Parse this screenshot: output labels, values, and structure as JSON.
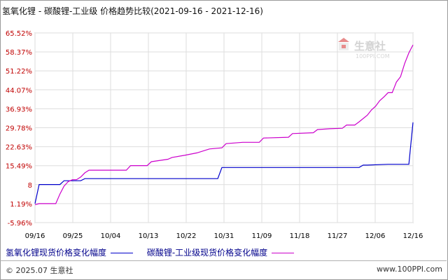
{
  "title": "氢氧化锂 - 碳酸锂-工业级 价格趋势比较(2021-09-16 - 2021-12-16)",
  "watermark": {
    "brand": "生意社",
    "url": "100PPI.COM"
  },
  "chart_data": {
    "type": "line",
    "yticks": [
      "65.52%",
      "58.37%",
      "51.22%",
      "44.07%",
      "36.93%",
      "29.78%",
      "22.63%",
      "15.49%",
      "8",
      "1.19%",
      "-5.96%"
    ],
    "ylim": [
      -5.96,
      65.52
    ],
    "xticks": [
      "09/16",
      "09/25",
      "10/04",
      "10/13",
      "10/22",
      "10/31",
      "11/09",
      "11/18",
      "11/27",
      "12/06",
      "12/16"
    ],
    "x_range": [
      "2021-09-16",
      "2021-12-16"
    ],
    "grid": true,
    "legend_position": "bottom",
    "series": [
      {
        "name": "氢氧化锂现货价格变化幅度",
        "color": "#0000cc",
        "points": [
          [
            "2021-09-16",
            1.2
          ],
          [
            "2021-09-17",
            8.4
          ],
          [
            "2021-09-18",
            8.4
          ],
          [
            "2021-09-19",
            8.4
          ],
          [
            "2021-09-20",
            8.4
          ],
          [
            "2021-09-21",
            8.4
          ],
          [
            "2021-09-22",
            8.4
          ],
          [
            "2021-09-23",
            9.8
          ],
          [
            "2021-09-24",
            9.8
          ],
          [
            "2021-09-25",
            9.8
          ],
          [
            "2021-09-26",
            9.8
          ],
          [
            "2021-09-27",
            9.8
          ],
          [
            "2021-09-28",
            10.6
          ],
          [
            "2021-09-29",
            10.6
          ],
          [
            "2021-10-08",
            10.6
          ],
          [
            "2021-10-15",
            10.6
          ],
          [
            "2021-10-22",
            10.6
          ],
          [
            "2021-10-29",
            10.6
          ],
          [
            "2021-10-30",
            10.6
          ],
          [
            "2021-10-31",
            14.8
          ],
          [
            "2021-11-05",
            14.8
          ],
          [
            "2021-11-15",
            14.8
          ],
          [
            "2021-11-25",
            14.8
          ],
          [
            "2021-12-03",
            14.8
          ],
          [
            "2021-12-04",
            15.7
          ],
          [
            "2021-12-05",
            15.7
          ],
          [
            "2021-12-10",
            16.0
          ],
          [
            "2021-12-14",
            16.0
          ],
          [
            "2021-12-15",
            16.0
          ],
          [
            "2021-12-16",
            31.8
          ]
        ]
      },
      {
        "name": "碳酸锂-工业级现货价格变化幅度",
        "color": "#cc00cc",
        "points": [
          [
            "2021-09-16",
            0.8
          ],
          [
            "2021-09-17",
            1.2
          ],
          [
            "2021-09-18",
            1.2
          ],
          [
            "2021-09-19",
            1.2
          ],
          [
            "2021-09-20",
            1.2
          ],
          [
            "2021-09-21",
            1.2
          ],
          [
            "2021-09-22",
            4.8
          ],
          [
            "2021-09-23",
            7.8
          ],
          [
            "2021-09-24",
            9.5
          ],
          [
            "2021-09-25",
            10.2
          ],
          [
            "2021-09-26",
            10.2
          ],
          [
            "2021-09-27",
            11.2
          ],
          [
            "2021-09-28",
            12.8
          ],
          [
            "2021-09-29",
            13.8
          ],
          [
            "2021-10-08",
            13.8
          ],
          [
            "2021-10-09",
            15.5
          ],
          [
            "2021-10-13",
            15.5
          ],
          [
            "2021-10-14",
            17.0
          ],
          [
            "2021-10-18",
            17.9
          ],
          [
            "2021-10-19",
            18.6
          ],
          [
            "2021-10-22",
            19.4
          ],
          [
            "2021-10-25",
            20.3
          ],
          [
            "2021-10-28",
            21.8
          ],
          [
            "2021-10-31",
            22.2
          ],
          [
            "2021-11-01",
            23.8
          ],
          [
            "2021-11-05",
            24.3
          ],
          [
            "2021-11-09",
            24.3
          ],
          [
            "2021-11-10",
            25.9
          ],
          [
            "2021-11-16",
            26.2
          ],
          [
            "2021-11-17",
            27.6
          ],
          [
            "2021-11-22",
            27.9
          ],
          [
            "2021-11-23",
            29.1
          ],
          [
            "2021-11-26",
            29.4
          ],
          [
            "2021-11-29",
            29.6
          ],
          [
            "2021-11-30",
            30.8
          ],
          [
            "2021-12-02",
            30.8
          ],
          [
            "2021-12-03",
            32.0
          ],
          [
            "2021-12-05",
            34.5
          ],
          [
            "2021-12-06",
            36.5
          ],
          [
            "2021-12-07",
            37.9
          ],
          [
            "2021-12-08",
            40.0
          ],
          [
            "2021-12-09",
            41.4
          ],
          [
            "2021-12-10",
            43.0
          ],
          [
            "2021-12-11",
            43.0
          ],
          [
            "2021-12-12",
            47.0
          ],
          [
            "2021-12-13",
            49.0
          ],
          [
            "2021-12-14",
            54.0
          ],
          [
            "2021-12-15",
            58.0
          ],
          [
            "2021-12-16",
            61.0
          ]
        ]
      }
    ]
  },
  "footer": {
    "copyright": "© 2025.07 生意社",
    "site": "www.100PPI.com"
  }
}
